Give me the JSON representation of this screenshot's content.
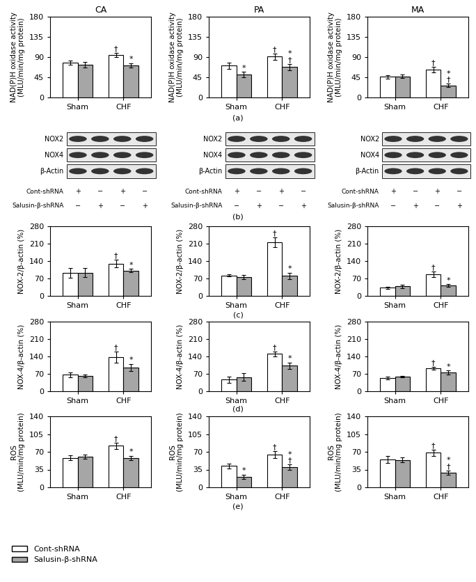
{
  "chart_data": [
    {
      "type": "bar",
      "title": "CA",
      "y_label": "NAD(P)H oxidase activity\n(MLU/min/mg protein)",
      "categories": [
        "Sham",
        "CHF"
      ],
      "ylim": [
        0,
        180
      ],
      "yticks": [
        0,
        45,
        90,
        135,
        180
      ],
      "legend": "lower left",
      "series": [
        {
          "name": "Cont-shRNA",
          "color": "#ffffff",
          "values": [
            78,
            95
          ],
          "errors": [
            5,
            5
          ],
          "annotations": [
            null,
            [
              "†"
            ]
          ]
        },
        {
          "name": "Salusin-β-shRNA",
          "color": "#a6a6a6",
          "values": [
            73,
            71
          ],
          "errors": [
            6,
            5
          ],
          "annotations": [
            null,
            [
              "*"
            ]
          ]
        }
      ]
    },
    {
      "type": "bar",
      "title": "PA",
      "y_label": "NAD(P)H oxidase activity\n(MLU/min/mg protein)",
      "categories": [
        "Sham",
        "CHF"
      ],
      "ylim": [
        0,
        180
      ],
      "yticks": [
        0,
        45,
        90,
        135,
        180
      ],
      "series": [
        {
          "name": "Cont-shRNA",
          "color": "#ffffff",
          "values": [
            71,
            91
          ],
          "errors": [
            7,
            7
          ],
          "annotations": [
            null,
            [
              "†"
            ]
          ]
        },
        {
          "name": "Salusin-β-shRNA",
          "color": "#a6a6a6",
          "values": [
            51,
            68
          ],
          "errors": [
            6,
            7
          ],
          "annotations": [
            [
              "*"
            ],
            [
              "*",
              "†"
            ]
          ]
        }
      ]
    },
    {
      "type": "bar",
      "title": "MA",
      "y_label": "NAD(P)H oxidase activity\n(MLU/min/mg protein)",
      "categories": [
        "Sham",
        "CHF"
      ],
      "ylim": [
        0,
        180
      ],
      "yticks": [
        0,
        45,
        90,
        135,
        180
      ],
      "series": [
        {
          "name": "Cont-shRNA",
          "color": "#ffffff",
          "values": [
            46,
            62
          ],
          "errors": [
            4,
            6
          ],
          "annotations": [
            null,
            [
              "†"
            ]
          ]
        },
        {
          "name": "Salusin-β-shRNA",
          "color": "#a6a6a6",
          "values": [
            47,
            27
          ],
          "errors": [
            4,
            4
          ],
          "annotations": [
            null,
            [
              "*",
              "†"
            ]
          ]
        }
      ]
    },
    {
      "type": "bar",
      "y_label": "NOX-2/β-actin (%)",
      "categories": [
        "Sham",
        "CHF"
      ],
      "ylim": [
        0,
        280
      ],
      "yticks": [
        0,
        70,
        140,
        210,
        280
      ],
      "series": [
        {
          "name": "Cont-shRNA",
          "color": "#ffffff",
          "values": [
            92,
            130
          ],
          "errors": [
            20,
            15
          ],
          "annotations": [
            null,
            [
              "†"
            ]
          ]
        },
        {
          "name": "Salusin-β-shRNA",
          "color": "#a6a6a6",
          "values": [
            93,
            102
          ],
          "errors": [
            18,
            6
          ],
          "annotations": [
            null,
            [
              "*"
            ]
          ]
        }
      ]
    },
    {
      "type": "bar",
      "y_label": "NOX-2/β-actin (%)",
      "categories": [
        "Sham",
        "CHF"
      ],
      "ylim": [
        0,
        280
      ],
      "yticks": [
        0,
        70,
        140,
        210,
        280
      ],
      "series": [
        {
          "name": "Cont-shRNA",
          "color": "#ffffff",
          "values": [
            82,
            215
          ],
          "errors": [
            4,
            20
          ],
          "annotations": [
            null,
            [
              "†"
            ]
          ]
        },
        {
          "name": "Salusin-β-shRNA",
          "color": "#a6a6a6",
          "values": [
            76,
            80
          ],
          "errors": [
            8,
            12
          ],
          "annotations": [
            null,
            [
              "*"
            ]
          ]
        }
      ]
    },
    {
      "type": "bar",
      "y_label": "NOX-2/β-actin (%)",
      "categories": [
        "Sham",
        "CHF"
      ],
      "ylim": [
        0,
        280
      ],
      "yticks": [
        0,
        70,
        140,
        210,
        280
      ],
      "series": [
        {
          "name": "Cont-shRNA",
          "color": "#ffffff",
          "values": [
            33,
            87
          ],
          "errors": [
            4,
            10
          ],
          "annotations": [
            null,
            [
              "†"
            ]
          ]
        },
        {
          "name": "Salusin-β-shRNA",
          "color": "#a6a6a6",
          "values": [
            38,
            42
          ],
          "errors": [
            7,
            5
          ],
          "annotations": [
            null,
            [
              "*"
            ]
          ]
        }
      ]
    },
    {
      "type": "bar",
      "y_label": "NOX-4/β-actin (%)",
      "categories": [
        "Sham",
        "CHF"
      ],
      "ylim": [
        0,
        280
      ],
      "yticks": [
        0,
        70,
        140,
        210,
        280
      ],
      "series": [
        {
          "name": "Cont-shRNA",
          "color": "#ffffff",
          "values": [
            67,
            138
          ],
          "errors": [
            10,
            22
          ],
          "annotations": [
            null,
            [
              "†"
            ]
          ]
        },
        {
          "name": "Salusin-β-shRNA",
          "color": "#a6a6a6",
          "values": [
            62,
            95
          ],
          "errors": [
            6,
            15
          ],
          "annotations": [
            null,
            [
              "*"
            ]
          ]
        }
      ]
    },
    {
      "type": "bar",
      "y_label": "NOX-4/β-actin (%)",
      "categories": [
        "Sham",
        "CHF"
      ],
      "ylim": [
        0,
        280
      ],
      "yticks": [
        0,
        70,
        140,
        210,
        280
      ],
      "series": [
        {
          "name": "Cont-shRNA",
          "color": "#ffffff",
          "values": [
            47,
            150
          ],
          "errors": [
            12,
            10
          ],
          "annotations": [
            null,
            [
              "†"
            ]
          ]
        },
        {
          "name": "Salusin-β-shRNA",
          "color": "#a6a6a6",
          "values": [
            57,
            103
          ],
          "errors": [
            15,
            12
          ],
          "annotations": [
            null,
            [
              "*"
            ]
          ]
        }
      ]
    },
    {
      "type": "bar",
      "y_label": "NOX-4/β-actin (%)",
      "categories": [
        "Sham",
        "CHF"
      ],
      "ylim": [
        0,
        280
      ],
      "yticks": [
        0,
        70,
        140,
        210,
        280
      ],
      "series": [
        {
          "name": "Cont-shRNA",
          "color": "#ffffff",
          "values": [
            53,
            93
          ],
          "errors": [
            6,
            6
          ],
          "annotations": [
            null,
            [
              "†"
            ]
          ]
        },
        {
          "name": "Salusin-β-shRNA",
          "color": "#a6a6a6",
          "values": [
            58,
            75
          ],
          "errors": [
            3,
            8
          ],
          "annotations": [
            null,
            [
              "*"
            ]
          ]
        }
      ]
    },
    {
      "type": "bar",
      "y_label": "ROS\n(MLU/min/mg protein)",
      "categories": [
        "Sham",
        "CHF"
      ],
      "ylim": [
        0,
        140
      ],
      "yticks": [
        0,
        35,
        70,
        105,
        140
      ],
      "series": [
        {
          "name": "Cont-shRNA",
          "color": "#ffffff",
          "values": [
            58,
            82
          ],
          "errors": [
            5,
            6
          ],
          "annotations": [
            null,
            [
              "†"
            ]
          ]
        },
        {
          "name": "Salusin-β-shRNA",
          "color": "#a6a6a6",
          "values": [
            60,
            58
          ],
          "errors": [
            4,
            4
          ],
          "annotations": [
            null,
            [
              "*"
            ]
          ]
        }
      ]
    },
    {
      "type": "bar",
      "y_label": "ROS\n(MLU/min/mg protein)",
      "categories": [
        "Sham",
        "CHF"
      ],
      "ylim": [
        0,
        140
      ],
      "yticks": [
        0,
        35,
        70,
        105,
        140
      ],
      "series": [
        {
          "name": "Cont-shRNA",
          "color": "#ffffff",
          "values": [
            42,
            65
          ],
          "errors": [
            5,
            7
          ],
          "annotations": [
            null,
            [
              "†"
            ]
          ]
        },
        {
          "name": "Salusin-β-shRNA",
          "color": "#a6a6a6",
          "values": [
            21,
            40
          ],
          "errors": [
            4,
            5
          ],
          "annotations": [
            [
              "*"
            ],
            [
              "*",
              "†"
            ]
          ]
        }
      ]
    },
    {
      "type": "bar",
      "y_label": "ROS\n(MLU/min/mg protein)",
      "categories": [
        "Sham",
        "CHF"
      ],
      "ylim": [
        0,
        140
      ],
      "yticks": [
        0,
        35,
        70,
        105,
        140
      ],
      "series": [
        {
          "name": "Cont-shRNA",
          "color": "#ffffff",
          "values": [
            55,
            68
          ],
          "errors": [
            7,
            6
          ],
          "annotations": [
            null,
            [
              "†"
            ]
          ]
        },
        {
          "name": "Salusin-β-shRNA",
          "color": "#a6a6a6",
          "values": [
            54,
            29
          ],
          "errors": [
            5,
            4
          ],
          "annotations": [
            null,
            [
              "*",
              "†"
            ]
          ]
        }
      ]
    }
  ],
  "panel_labels": [
    "(a)",
    "(b)",
    "(c)",
    "(d)",
    "(e)"
  ],
  "blots": [
    {
      "rows": [
        "NOX2",
        "NOX4",
        "β-Actin"
      ],
      "conditions": [
        {
          "name": "Cont-shRNA",
          "signs": [
            "+",
            "−",
            "+",
            "−"
          ]
        },
        {
          "name": "Salusin-β-shRNA",
          "signs": [
            "−",
            "+",
            "−",
            "+"
          ]
        }
      ]
    },
    {
      "rows": [
        "NOX2",
        "NOX4",
        "β-Actin"
      ],
      "conditions": [
        {
          "name": "Cont-shRNA",
          "signs": [
            "+",
            "−",
            "+",
            "−"
          ]
        },
        {
          "name": "Salusin-β-shRNA",
          "signs": [
            "−",
            "+",
            "−",
            "+"
          ]
        }
      ]
    },
    {
      "rows": [
        "NOX2",
        "NOX4",
        "β-Actin"
      ],
      "conditions": [
        {
          "name": "Cont-shRNA",
          "signs": [
            "+",
            "−",
            "+",
            "−"
          ]
        },
        {
          "name": "Salusin-β-shRNA",
          "signs": [
            "−",
            "+",
            "−",
            "+"
          ]
        }
      ]
    }
  ]
}
